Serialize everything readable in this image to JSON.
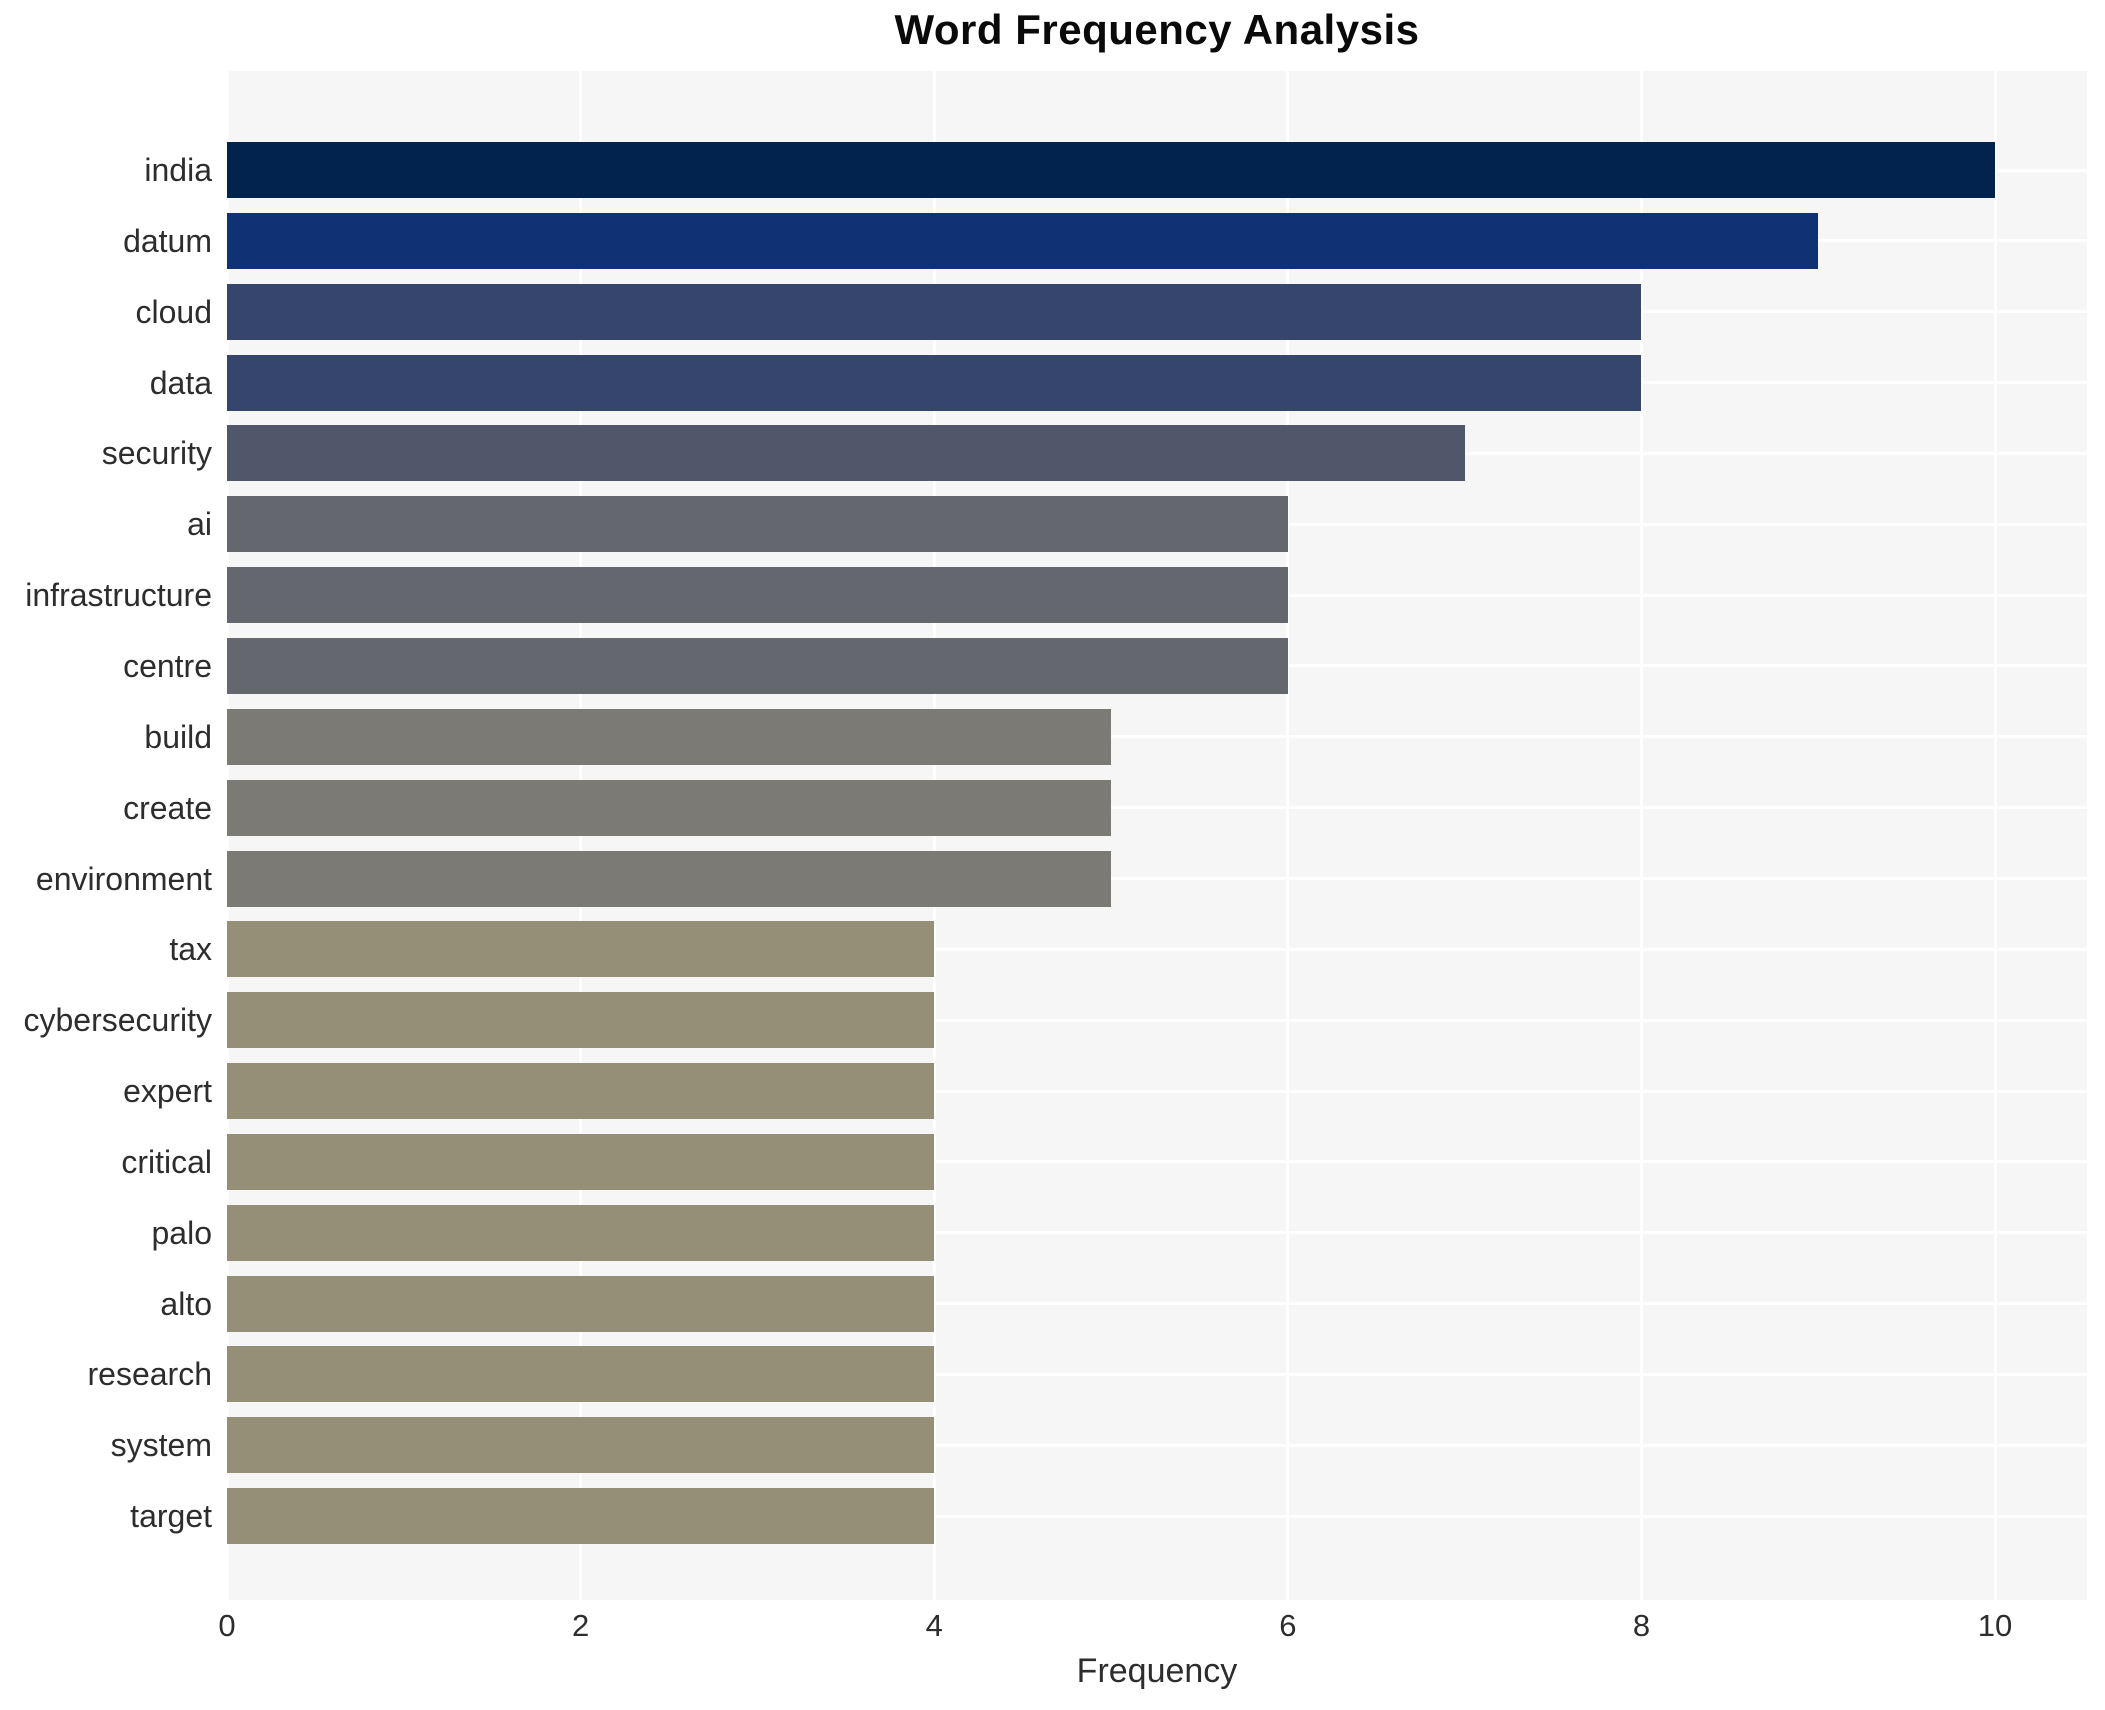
{
  "chart_data": {
    "type": "bar",
    "orientation": "horizontal",
    "title": "Word Frequency Analysis",
    "xlabel": "Frequency",
    "ylabel": "",
    "categories": [
      "india",
      "datum",
      "cloud",
      "data",
      "security",
      "ai",
      "infrastructure",
      "centre",
      "build",
      "create",
      "environment",
      "tax",
      "cybersecurity",
      "expert",
      "critical",
      "palo",
      "alto",
      "research",
      "system",
      "target"
    ],
    "values": [
      10,
      9,
      8,
      8,
      7,
      6,
      6,
      6,
      5,
      5,
      5,
      4,
      4,
      4,
      4,
      4,
      4,
      4,
      4,
      4
    ],
    "bar_colors": [
      "#02234e",
      "#0e3274",
      "#36456c",
      "#36456c",
      "#50576a",
      "#65676f",
      "#65676f",
      "#65676f",
      "#7b7a75",
      "#7b7a75",
      "#7b7a75",
      "#948f76",
      "#948f76",
      "#948f76",
      "#948f76",
      "#948f76",
      "#948f76",
      "#948f76",
      "#948f76",
      "#948f76"
    ],
    "x_ticks": [
      0,
      2,
      4,
      6,
      8,
      10
    ],
    "xlim": [
      0,
      10.52
    ],
    "grid": true,
    "legend": "none",
    "plot_background": "#f6f6f7",
    "grid_color": "#ffffff",
    "title_color": "#0a0a0a",
    "tick_label_color": "#2d2d2d"
  }
}
